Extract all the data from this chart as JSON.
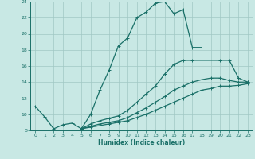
{
  "xlabel": "Humidex (Indice chaleur)",
  "xlim": [
    -0.5,
    23.5
  ],
  "ylim": [
    8,
    24
  ],
  "xticks": [
    0,
    1,
    2,
    3,
    4,
    5,
    6,
    7,
    8,
    9,
    10,
    11,
    12,
    13,
    14,
    15,
    16,
    17,
    18,
    19,
    20,
    21,
    22,
    23
  ],
  "yticks": [
    8,
    10,
    12,
    14,
    16,
    18,
    20,
    22,
    24
  ],
  "bg_color": "#c8e8e4",
  "grid_color": "#a0c8c4",
  "line_color": "#1a7068",
  "lines": [
    {
      "x": [
        0,
        1,
        2,
        3,
        4,
        5,
        6,
        7,
        8,
        9,
        10,
        11,
        12,
        13,
        14,
        15,
        16,
        17,
        18
      ],
      "y": [
        11.0,
        9.7,
        8.2,
        8.7,
        8.9,
        8.2,
        10.0,
        13.0,
        15.5,
        18.5,
        19.5,
        22.0,
        22.7,
        23.8,
        24.0,
        22.5,
        23.0,
        18.3,
        18.3
      ]
    },
    {
      "x": [
        5,
        6,
        7,
        8,
        9,
        10,
        11,
        12,
        13,
        14,
        15,
        16,
        17,
        20,
        21,
        22,
        23
      ],
      "y": [
        8.2,
        8.8,
        9.2,
        9.5,
        9.8,
        10.5,
        11.5,
        12.5,
        13.5,
        15.0,
        16.2,
        16.7,
        16.7,
        16.7,
        16.7,
        14.5,
        14.0
      ]
    },
    {
      "x": [
        5,
        6,
        7,
        8,
        9,
        10,
        11,
        12,
        13,
        14,
        15,
        16,
        17,
        18,
        19,
        20,
        21,
        22,
        23
      ],
      "y": [
        8.2,
        8.5,
        8.8,
        9.0,
        9.2,
        9.6,
        10.2,
        10.8,
        11.5,
        12.2,
        13.0,
        13.5,
        14.0,
        14.3,
        14.5,
        14.5,
        14.2,
        14.0,
        14.0
      ]
    },
    {
      "x": [
        5,
        6,
        7,
        8,
        9,
        10,
        11,
        12,
        13,
        14,
        15,
        16,
        17,
        18,
        19,
        20,
        21,
        22,
        23
      ],
      "y": [
        8.2,
        8.4,
        8.6,
        8.8,
        9.0,
        9.2,
        9.6,
        10.0,
        10.5,
        11.0,
        11.5,
        12.0,
        12.5,
        13.0,
        13.2,
        13.5,
        13.5,
        13.6,
        13.8
      ]
    }
  ]
}
